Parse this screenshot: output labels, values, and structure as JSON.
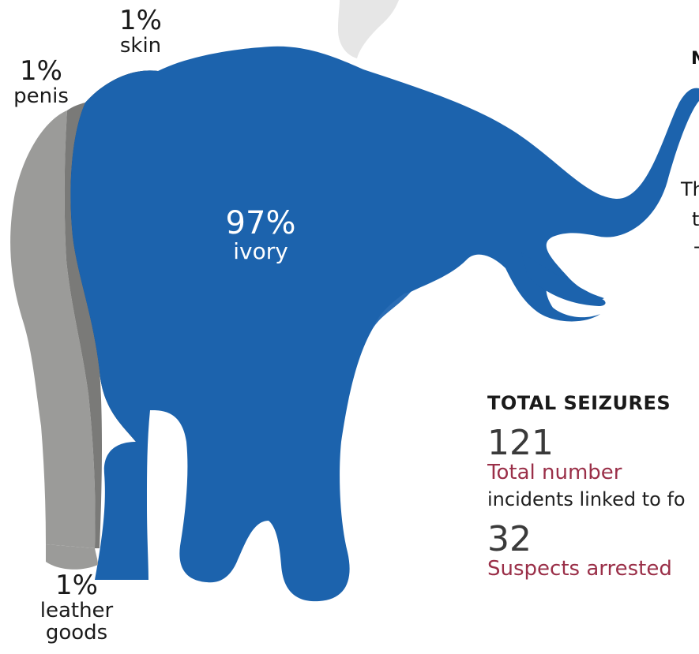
{
  "breakdown": {
    "penis": {
      "percent": "1%",
      "label": "penis"
    },
    "skin": {
      "percent": "1%",
      "label": "skin"
    },
    "ivory": {
      "percent": "97%",
      "label": "ivory"
    },
    "leather": {
      "percent": "1%",
      "label_line1": "leather",
      "label_line2": "goods"
    }
  },
  "cut_text": {
    "top": "N",
    "mid1": "Th",
    "mid2": "t",
    "mid3": "-"
  },
  "stats": {
    "title": "TOTAL SEIZURES",
    "total_value": "121",
    "total_label": "Total number",
    "total_desc": "incidents linked to fo",
    "suspects_value": "32",
    "suspects_label": "Suspects arrested"
  },
  "colors": {
    "ivory": "#1c63ad",
    "skin": "#121412",
    "penis": "#7a7a78",
    "leather": "#9b9b99",
    "accent": "#9a2f48"
  }
}
